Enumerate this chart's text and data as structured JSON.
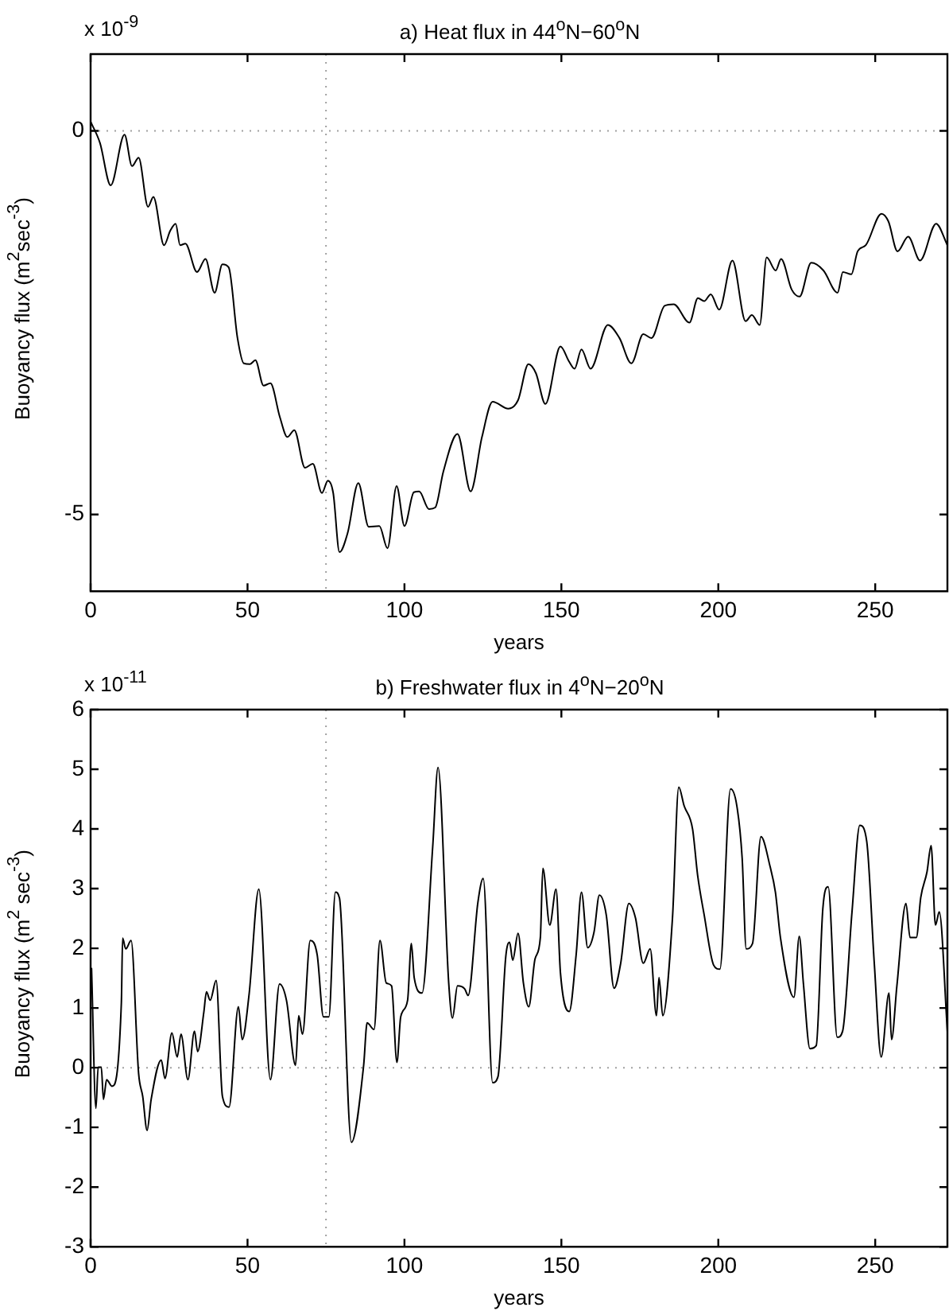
{
  "chart_data": [
    {
      "type": "line",
      "title": "a) Heat flux in 44$^{o}$N−60$^{o}$N",
      "xlabel": "years",
      "ylabel": "Buoyancy flux (m$^{2}$sec$^{-3}$)",
      "annotations": [
        "x 10$^{-9}$"
      ],
      "xlim": [
        0,
        273
      ],
      "xticks": [
        0,
        50,
        100,
        150,
        200,
        250
      ],
      "ylim": [
        -6,
        1
      ],
      "yticks": [
        -5,
        0
      ],
      "marker": "none",
      "line_style": "solid",
      "color": "#000000",
      "ref_lines": [
        {
          "axis": "y",
          "value": 0,
          "line_style": "dotted",
          "color": "#a0a0a0"
        },
        {
          "axis": "x",
          "value": 75,
          "line_style": "dotted",
          "color": "#a0a0a0"
        }
      ],
      "x": [
        0,
        3,
        6.4,
        10.8,
        13.2,
        15.3,
        18.3,
        20,
        23.4,
        25.4,
        27.1,
        28.5,
        30.2,
        33.9,
        36.6,
        39.5,
        42,
        44,
        46.8,
        48.8,
        50.8,
        52.5,
        55.1,
        57.3,
        60.3,
        62.7,
        64.9,
        68.3,
        70.8,
        73.7,
        75.6,
        77.3,
        79.3,
        81.9,
        85.3,
        88.6,
        92,
        94.6,
        97.5,
        100,
        103,
        104.7,
        107.8,
        109.8,
        112.4,
        116.9,
        121.1,
        124.7,
        128.1,
        133.1,
        136.2,
        139.5,
        141.9,
        144.9,
        149.7,
        152.5,
        154.2,
        156.4,
        159.3,
        164.8,
        168.5,
        172.3,
        176.1,
        178.7,
        182.9,
        185.8,
        190.8,
        193.5,
        195.5,
        197.6,
        200.3,
        204.5,
        208.7,
        210.7,
        213.2,
        215.4,
        218.3,
        220,
        223.4,
        225.9,
        229.6,
        233.5,
        238,
        239.7,
        242.4,
        244.4,
        247,
        252,
        254.2,
        257.1,
        260.5,
        264.3,
        269.4,
        273
      ],
      "values": [
        0.12,
        -0.16,
        -0.71,
        -0.05,
        -0.46,
        -0.35,
        -0.99,
        -0.86,
        -1.49,
        -1.3,
        -1.21,
        -1.49,
        -1.47,
        -1.84,
        -1.67,
        -2.11,
        -1.74,
        -1.78,
        -2.7,
        -3.03,
        -3.04,
        -2.99,
        -3.32,
        -3.29,
        -3.73,
        -3.99,
        -3.9,
        -4.39,
        -4.34,
        -4.72,
        -4.56,
        -4.72,
        -5.49,
        -5.24,
        -4.59,
        -5.16,
        -5.15,
        -5.44,
        -4.63,
        -5.15,
        -4.71,
        -4.7,
        -4.93,
        -4.91,
        -4.44,
        -3.95,
        -4.7,
        -3.99,
        -3.53,
        -3.62,
        -3.51,
        -3.04,
        -3.16,
        -3.56,
        -2.81,
        -3.01,
        -3.1,
        -2.85,
        -3.1,
        -2.53,
        -2.7,
        -3.03,
        -2.65,
        -2.7,
        -2.28,
        -2.26,
        -2.5,
        -2.18,
        -2.22,
        -2.13,
        -2.33,
        -1.69,
        -2.48,
        -2.4,
        -2.53,
        -1.65,
        -1.82,
        -1.67,
        -2.07,
        -2.16,
        -1.72,
        -1.82,
        -2.11,
        -1.84,
        -1.87,
        -1.57,
        -1.49,
        -1.08,
        -1.18,
        -1.57,
        -1.38,
        -1.69,
        -1.21,
        -1.49
      ]
    },
    {
      "type": "line",
      "title": "b) Freshwater flux in 4$^{o}$N−20$^{o}$N",
      "xlabel": "years",
      "ylabel": "Buoyancy flux (m$^{2}$ sec$^{-3}$)",
      "annotations": [
        "x 10$^{-11}$"
      ],
      "xlim": [
        0,
        273
      ],
      "xticks": [
        0,
        50,
        100,
        150,
        200,
        250
      ],
      "ylim": [
        -3,
        6
      ],
      "yticks": [
        -3,
        -2,
        -1,
        0,
        1,
        2,
        3,
        4,
        5,
        6
      ],
      "marker": "none",
      "line_style": "solid",
      "color": "#000000",
      "ref_lines": [
        {
          "axis": "y",
          "value": 0,
          "line_style": "dotted",
          "color": "#a0a0a0"
        },
        {
          "axis": "x",
          "value": 75,
          "line_style": "dotted",
          "color": "#a0a0a0"
        }
      ],
      "x": [
        0.3,
        1.7,
        2.4,
        3.4,
        4.1,
        5.1,
        6.8,
        9.8,
        10.2,
        11.2,
        12.9,
        15.3,
        16.6,
        18,
        19.3,
        22.5,
        23.7,
        25.9,
        27.6,
        28.8,
        31,
        33.1,
        34.1,
        36.1,
        36.9,
        38.1,
        40,
        42,
        44.1,
        47.1,
        48.3,
        50.5,
        53.6,
        57.3,
        60.2,
        62.4,
        65.3,
        66.3,
        67.5,
        70,
        72.2,
        74.2,
        75.9,
        78,
        79.3,
        83.1,
        87,
        88.1,
        90.3,
        92.2,
        94.2,
        95.9,
        97.6,
        98.8,
        101,
        102.2,
        103.1,
        105.6,
        109,
        110.7,
        114.1,
        115.3,
        116.9,
        119.2,
        120.3,
        123.4,
        125.1,
        128.1,
        129.8,
        132.3,
        133.5,
        134.5,
        136.2,
        137.9,
        139.6,
        141.6,
        143.3,
        144.1,
        146.3,
        148.3,
        149.7,
        152.5,
        154.7,
        156.4,
        158.4,
        160.4,
        162.1,
        164.3,
        166.8,
        168.9,
        171.5,
        173.6,
        176.1,
        178.3,
        180.3,
        181.1,
        182.3,
        185.4,
        187.4,
        189.1,
        191.8,
        193.4,
        195.5,
        198.5,
        200.5,
        203.9,
        205.9,
        207.6,
        208.9,
        210.9,
        213.6,
        216.5,
        218.2,
        219.8,
        224.1,
        225.8,
        227.1,
        229.2,
        231.2,
        233.3,
        235,
        237.9,
        239.6,
        242.6,
        245.1,
        247.3,
        249.7,
        251.9,
        254.4,
        255.2,
        256.9,
        259.8,
        261.1,
        263.1,
        264.5,
        266.5,
        267.8,
        269.2,
        270.4,
        273
      ],
      "values": [
        1.66,
        -0.68,
        0.01,
        0.01,
        -0.53,
        -0.2,
        -0.31,
        1.09,
        2.17,
        1.99,
        2.13,
        -0.1,
        -0.48,
        -1.05,
        -0.53,
        0.13,
        -0.18,
        0.58,
        0.18,
        0.56,
        -0.2,
        0.61,
        0.27,
        0.94,
        1.27,
        1.13,
        1.46,
        -0.48,
        -0.66,
        1.02,
        0.47,
        1.23,
        2.99,
        -0.2,
        1.4,
        1.13,
        0.04,
        0.87,
        0.56,
        2.13,
        1.89,
        0.85,
        0.85,
        2.94,
        2.84,
        -1.25,
        0.04,
        0.75,
        0.64,
        2.13,
        1.42,
        1.37,
        0.09,
        0.85,
        1.13,
        2.08,
        1.51,
        1.25,
        3.7,
        5.03,
        1.42,
        0.83,
        1.37,
        1.32,
        1.21,
        2.77,
        3.17,
        -0.25,
        -0.15,
        1.87,
        2.1,
        1.8,
        2.25,
        1.42,
        1.02,
        1.82,
        2.18,
        3.34,
        2.39,
        2.99,
        1.59,
        0.94,
        1.89,
        2.94,
        2.01,
        2.27,
        2.89,
        2.56,
        1.33,
        1.75,
        2.75,
        2.51,
        1.75,
        1.99,
        0.87,
        1.51,
        0.87,
        2.51,
        4.7,
        4.39,
        4,
        3.23,
        2.56,
        1.72,
        1.65,
        4.67,
        4.39,
        3.51,
        1.99,
        2.08,
        3.87,
        3.37,
        2.94,
        2.18,
        1.18,
        2.2,
        1.42,
        0.32,
        0.37,
        2.66,
        3.03,
        0.51,
        0.61,
        2.61,
        4.06,
        3.79,
        1.75,
        0.18,
        1.25,
        0.47,
        1.37,
        2.75,
        2.18,
        2.18,
        2.85,
        3.28,
        3.72,
        2.39,
        2.61,
        0.6
      ]
    }
  ]
}
